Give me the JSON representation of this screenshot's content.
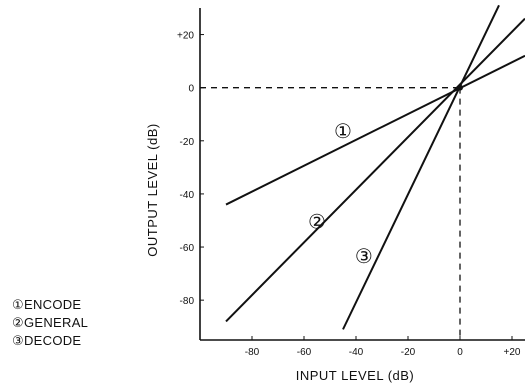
{
  "chart_data": {
    "type": "line",
    "xlabel": "INPUT LEVEL (dB)",
    "ylabel": "OUTPUT LEVEL (dB)",
    "xlim": [
      -100,
      25
    ],
    "ylim": [
      -95,
      30
    ],
    "x_ticks": [
      -80,
      -60,
      -40,
      -20,
      0,
      20
    ],
    "x_tick_labels": [
      "-80",
      "-60",
      "-40",
      "-20",
      "0",
      "+20"
    ],
    "y_ticks": [
      -80,
      -60,
      -40,
      -20,
      0,
      20
    ],
    "y_tick_labels": [
      "-80",
      "-60",
      "-40",
      "-20",
      "0",
      "+20"
    ],
    "series": [
      {
        "name": "①",
        "x": [
          -90,
          25
        ],
        "y": [
          -44,
          12
        ]
      },
      {
        "name": "②",
        "x": [
          -90,
          25
        ],
        "y": [
          -88,
          26
        ]
      },
      {
        "name": "③",
        "x": [
          -45,
          15
        ],
        "y": [
          -91,
          31
        ]
      }
    ],
    "reference_lines": {
      "x": 0,
      "y": 0,
      "style": "dashed"
    },
    "legend": [
      {
        "marker": "①",
        "label": "ENCODE"
      },
      {
        "marker": "②",
        "label": "GENERAL"
      },
      {
        "marker": "③",
        "label": "DECODE"
      }
    ]
  }
}
